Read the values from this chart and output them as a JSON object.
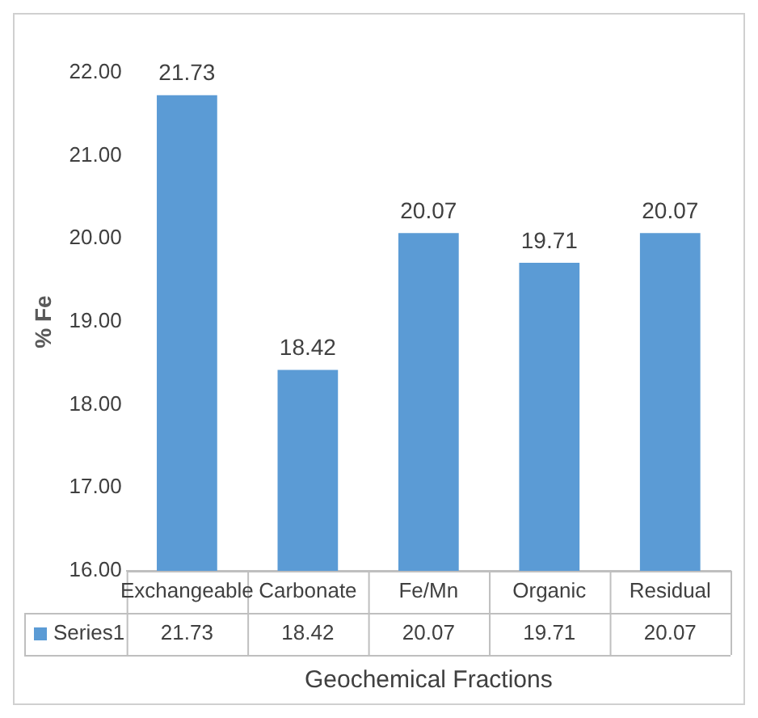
{
  "chart_data": {
    "type": "bar",
    "ylabel": "% Fe",
    "xlabel": "Geochemical Fractions",
    "categories": [
      "Exchangeable",
      "Carbonate",
      "Fe/Mn",
      "Organic",
      "Residual"
    ],
    "series": [
      {
        "name": "Series1",
        "color": "#5b9bd5",
        "values": [
          21.73,
          18.42,
          20.07,
          19.71,
          20.07
        ],
        "value_labels": [
          "21.73",
          "18.42",
          "20.07",
          "19.71",
          "20.07"
        ]
      }
    ],
    "ylim": [
      16,
      22
    ],
    "yticks": [
      {
        "value": 16,
        "label": "16.00"
      },
      {
        "value": 17,
        "label": "17.00"
      },
      {
        "value": 18,
        "label": "18.00"
      },
      {
        "value": 19,
        "label": "19.00"
      },
      {
        "value": 20,
        "label": "20.00"
      },
      {
        "value": 21,
        "label": "21.00"
      },
      {
        "value": 22,
        "label": "22.00"
      }
    ],
    "grid": false,
    "annotations": [
      "21.73",
      "18.42",
      "20.07",
      "19.71",
      "20.07"
    ]
  }
}
